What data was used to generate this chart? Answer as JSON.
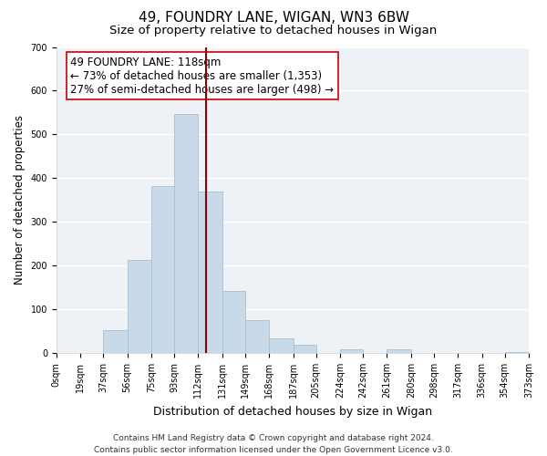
{
  "title": "49, FOUNDRY LANE, WIGAN, WN3 6BW",
  "subtitle": "Size of property relative to detached houses in Wigan",
  "xlabel": "Distribution of detached houses by size in Wigan",
  "ylabel": "Number of detached properties",
  "bar_color": "#c8d9ea",
  "bar_edge_color": "#aabfcf",
  "background_color": "#ffffff",
  "plot_bg_color": "#eef2f7",
  "grid_color": "#ffffff",
  "vline_x": 118,
  "vline_color": "#8b0000",
  "annotation_lines": [
    "49 FOUNDRY LANE: 118sqm",
    "← 73% of detached houses are smaller (1,353)",
    "27% of semi-detached houses are larger (498) →"
  ],
  "annotation_box_color": "white",
  "annotation_box_edge": "#cc0000",
  "tick_labels": [
    "0sqm",
    "19sqm",
    "37sqm",
    "56sqm",
    "75sqm",
    "93sqm",
    "112sqm",
    "131sqm",
    "149sqm",
    "168sqm",
    "187sqm",
    "205sqm",
    "224sqm",
    "242sqm",
    "261sqm",
    "280sqm",
    "298sqm",
    "317sqm",
    "336sqm",
    "354sqm",
    "373sqm"
  ],
  "bin_edges": [
    0,
    19,
    37,
    56,
    75,
    93,
    112,
    131,
    149,
    168,
    187,
    205,
    224,
    242,
    261,
    280,
    298,
    317,
    336,
    354,
    373
  ],
  "bin_counts": [
    0,
    0,
    53,
    212,
    382,
    547,
    370,
    142,
    76,
    33,
    19,
    0,
    8,
    0,
    8,
    0,
    0,
    0,
    0,
    2
  ],
  "ylim": [
    0,
    700
  ],
  "yticks": [
    0,
    100,
    200,
    300,
    400,
    500,
    600,
    700
  ],
  "footer_line1": "Contains HM Land Registry data © Crown copyright and database right 2024.",
  "footer_line2": "Contains public sector information licensed under the Open Government Licence v3.0.",
  "title_fontsize": 11,
  "subtitle_fontsize": 9.5,
  "xlabel_fontsize": 9,
  "ylabel_fontsize": 8.5,
  "tick_fontsize": 7,
  "footer_fontsize": 6.5,
  "annotation_fontsize": 8.5
}
